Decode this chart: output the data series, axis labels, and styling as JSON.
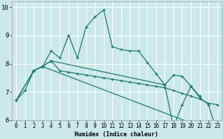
{
  "xlabel": "Humidex (Indice chaleur)",
  "bg_color": "#cce8e8",
  "grid_color": "#ffffff",
  "line_color": "#1a7a6e",
  "xlim": [
    -0.5,
    23.5
  ],
  "ylim": [
    6.0,
    10.2
  ],
  "xticks": [
    0,
    1,
    2,
    3,
    4,
    5,
    6,
    7,
    8,
    9,
    10,
    11,
    12,
    13,
    14,
    15,
    16,
    17,
    18,
    19,
    20,
    21,
    22,
    23
  ],
  "yticks": [
    6,
    7,
    8,
    9,
    10
  ],
  "lines": [
    {
      "x": [
        0,
        1,
        2,
        3,
        4,
        5,
        6,
        7,
        8,
        9,
        10,
        11,
        12,
        13,
        14,
        15,
        16,
        17,
        18,
        19,
        20,
        21
      ],
      "y": [
        6.7,
        7.05,
        7.75,
        7.9,
        8.45,
        8.2,
        9.0,
        8.2,
        9.3,
        9.65,
        9.9,
        8.6,
        8.5,
        8.45,
        8.45,
        8.05,
        7.65,
        7.25,
        7.6,
        7.55,
        7.2,
        6.85
      ]
    },
    {
      "x": [
        2,
        3,
        4,
        5,
        6,
        7,
        8,
        9,
        10,
        11,
        12,
        13,
        14,
        15,
        16,
        17,
        18,
        19,
        20,
        21,
        22,
        23
      ],
      "y": [
        7.75,
        7.9,
        8.1,
        7.75,
        7.7,
        7.65,
        7.6,
        7.55,
        7.5,
        7.45,
        7.4,
        7.35,
        7.3,
        7.25,
        7.2,
        7.15,
        7.05,
        6.95,
        6.85,
        6.75,
        6.6,
        6.55
      ]
    },
    {
      "x": [
        0,
        2,
        3,
        23
      ],
      "y": [
        6.7,
        7.75,
        7.9,
        5.55
      ]
    },
    {
      "x": [
        0,
        2,
        3,
        4,
        17,
        18,
        19,
        20,
        21,
        22,
        23
      ],
      "y": [
        6.7,
        7.75,
        7.9,
        8.1,
        7.25,
        5.75,
        6.55,
        7.2,
        6.8,
        6.55,
        5.55
      ]
    }
  ]
}
